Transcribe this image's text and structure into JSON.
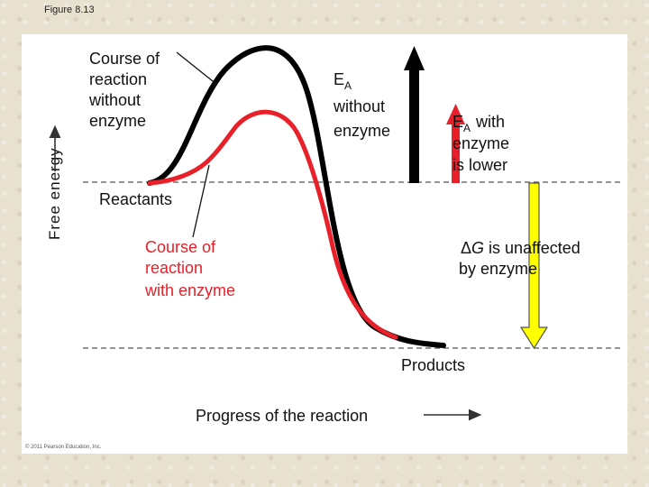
{
  "figure_label": "Figure 8.13",
  "labels": {
    "y_axis": "Free energy",
    "x_axis": "Progress of the reaction",
    "course_without_enzyme": [
      "Course of",
      "reaction",
      "without",
      "enzyme"
    ],
    "ea_without_enzyme": [
      "E",
      "A",
      "without",
      "enzyme"
    ],
    "ea_with_enzyme": [
      "E",
      "A",
      "with",
      "enzyme",
      "is lower"
    ],
    "reactants": "Reactants",
    "course_with_enzyme": [
      "Course of",
      "reaction",
      "with enzyme"
    ],
    "delta_g": [
      "Δ",
      "G",
      " is unaffected",
      "by enzyme"
    ],
    "products": "Products"
  },
  "copyright": "© 2011 Pearson Education, Inc.",
  "colors": {
    "uncatalyzed_curve": "#000000",
    "catalyzed_curve": "#e8202a",
    "ea_arrow": "#000000",
    "delta_g_arrow_fill": "#ffff00",
    "delta_g_arrow_stroke": "#555555"
  }
}
